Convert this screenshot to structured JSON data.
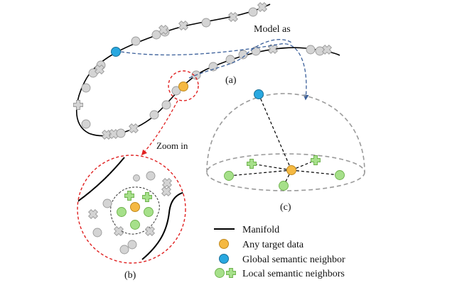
{
  "labels": {
    "model_as": "Model as",
    "zoom_in": "Zoom in",
    "panel_a": "(a)",
    "panel_b": "(b)",
    "panel_c": "(c)"
  },
  "legend": [
    {
      "marker": "line",
      "text": "Manifold"
    },
    {
      "marker": "orange-circle",
      "text": "Any target data"
    },
    {
      "marker": "blue-circle",
      "text": "Global semantic neighbor"
    },
    {
      "marker": "green-circle-and-cross",
      "text": "Local semantic neighbors"
    }
  ],
  "colors": {
    "manifold": "#000000",
    "target": "#f5b942",
    "global_neighbor": "#29a8e0",
    "local_neighbor": "#a6e08a",
    "other_point": "#d4d4d4",
    "zoom_arrow": "#e02020",
    "model_arrow": "#3a5f9a",
    "hemisphere": "#9a9a9a"
  }
}
